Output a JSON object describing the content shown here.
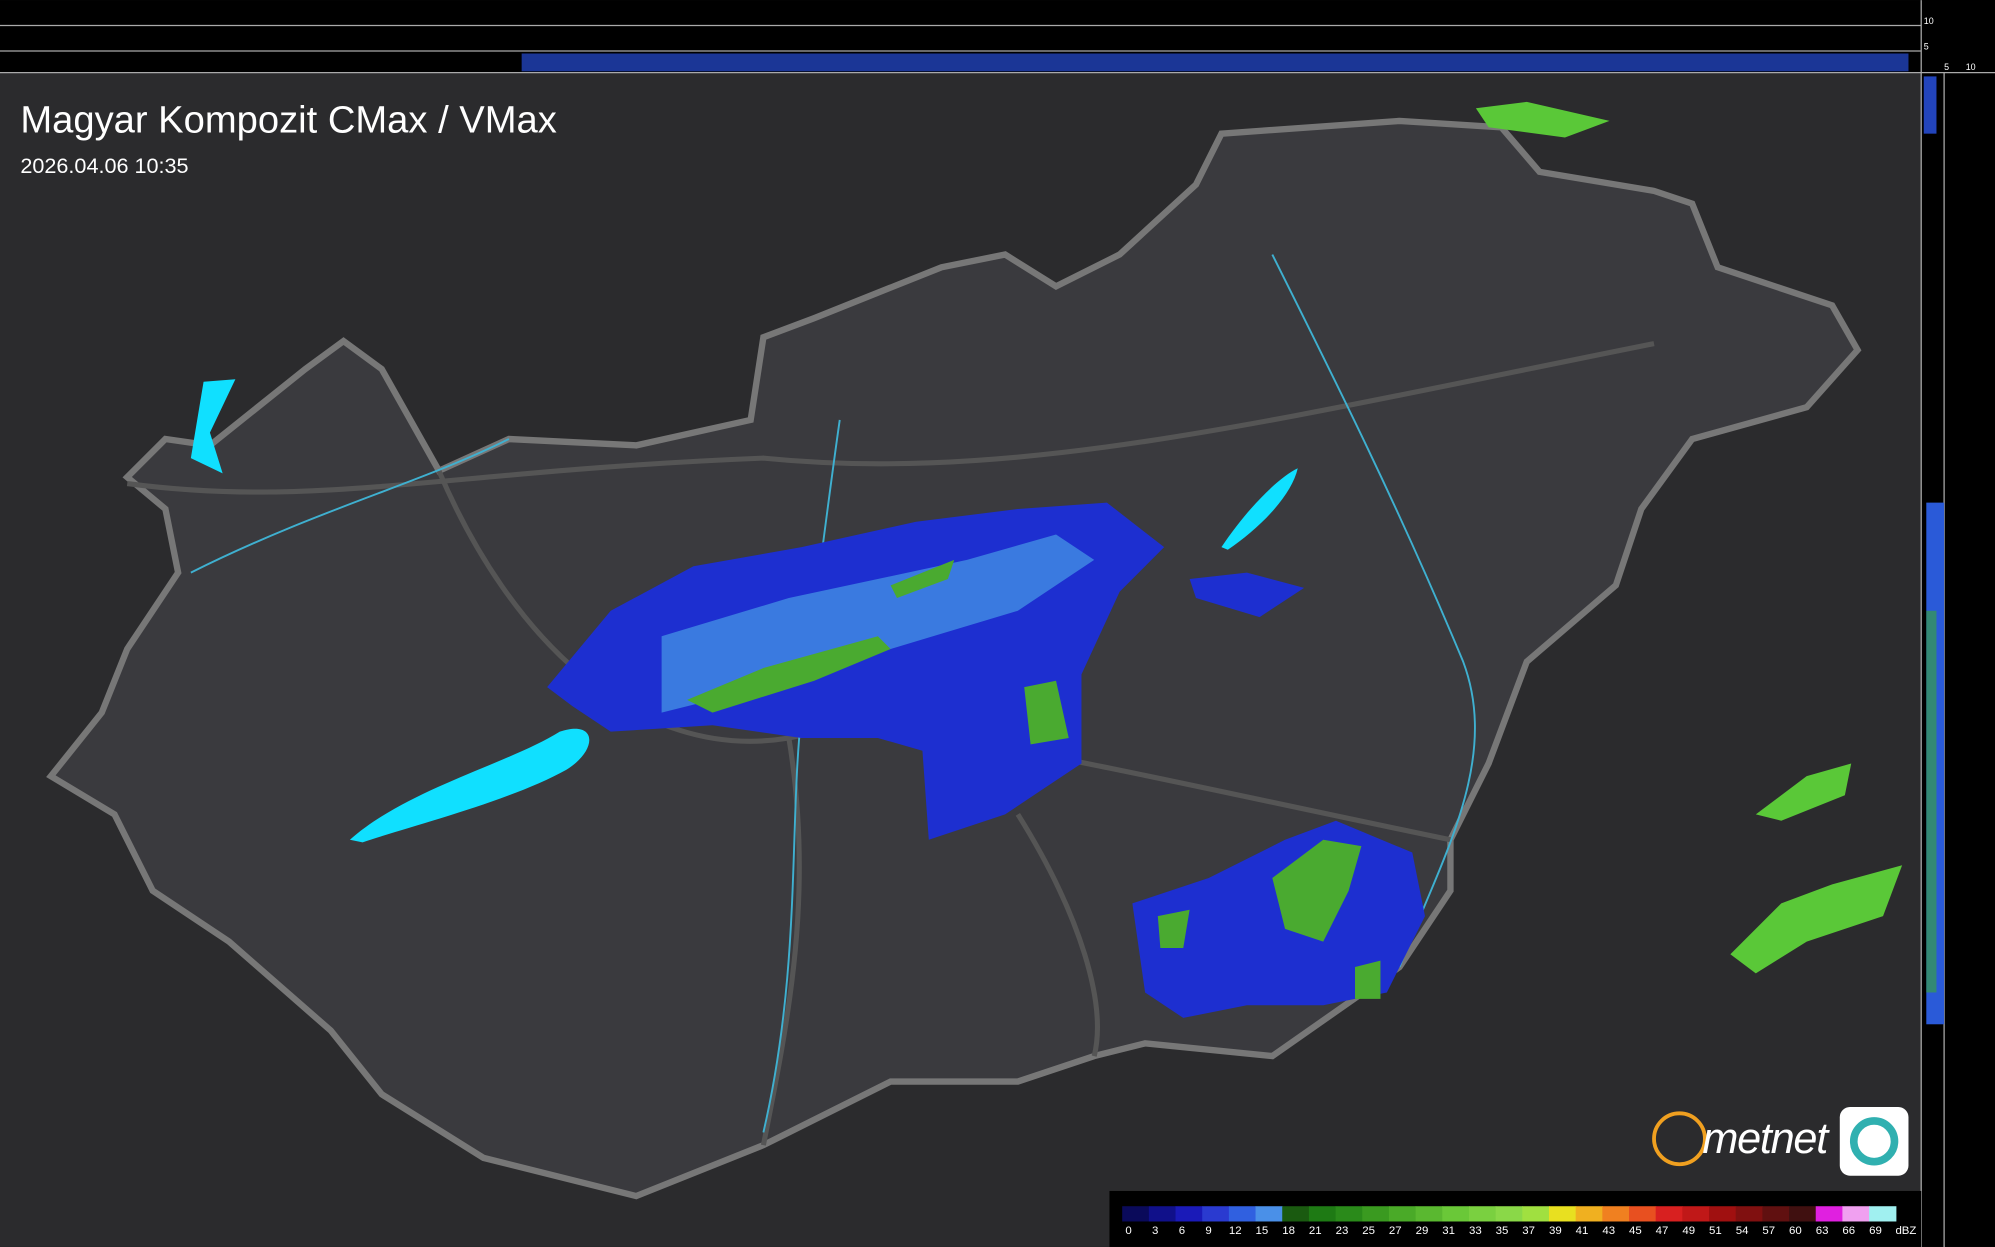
{
  "header": {
    "title": "Magyar Kompozit CMax / VMax",
    "timestamp": "2026.04.06 10:35"
  },
  "side_scale": {
    "right_labels": [
      "10",
      "5"
    ],
    "top_labels": [
      "5",
      "10"
    ]
  },
  "logo": {
    "text": "metnet"
  },
  "legend": {
    "values": [
      0,
      3,
      6,
      9,
      12,
      15,
      18,
      21,
      23,
      25,
      27,
      29,
      31,
      33,
      35,
      37,
      39,
      41,
      43,
      45,
      47,
      49,
      51,
      54,
      57,
      60,
      63,
      66,
      69
    ],
    "colors": [
      "#0a0a5a",
      "#10108a",
      "#1a1ab8",
      "#2a3ad0",
      "#3060e0",
      "#4a90e8",
      "#1a5a10",
      "#1e7a14",
      "#2a8a1a",
      "#3a9a20",
      "#4aaa28",
      "#5ab830",
      "#6ac838",
      "#7ad040",
      "#8ad848",
      "#a0e040",
      "#e8e020",
      "#f0b020",
      "#f08020",
      "#e85020",
      "#d82020",
      "#c01818",
      "#a01010",
      "#801010",
      "#601010",
      "#401010",
      "#e020e0",
      "#f0a0f0",
      "#a0f0f0"
    ],
    "unit": "dBZ"
  }
}
